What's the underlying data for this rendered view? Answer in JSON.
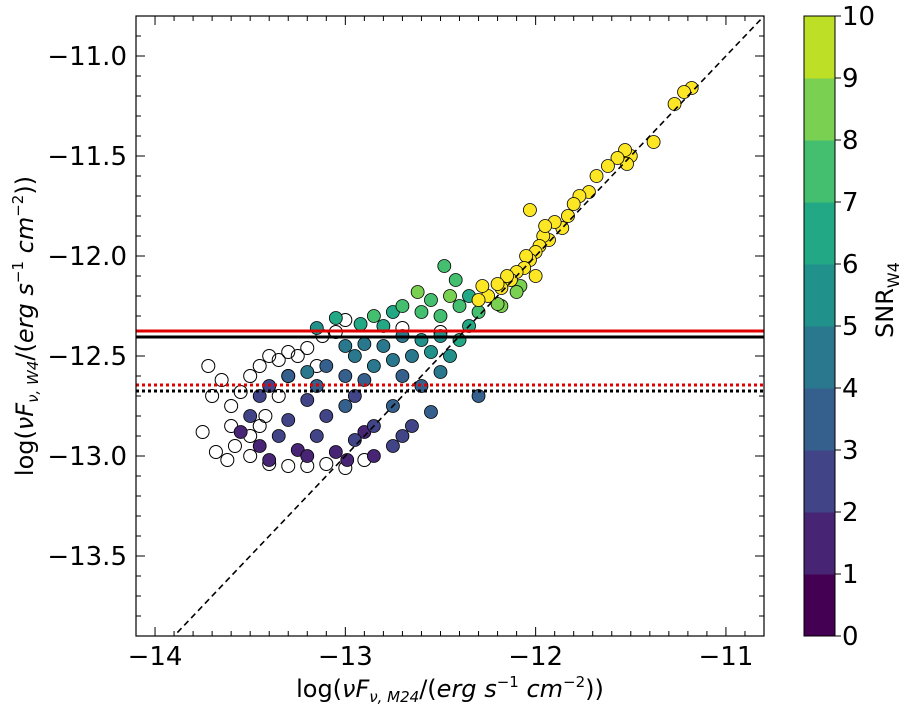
{
  "chart_data": {
    "type": "scatter",
    "xlabel": "log(νF_{ν,M24}/(erg s^{−1} cm^{−2}))",
    "ylabel": "log(νF_{ν,W4}/(erg s^{−1} cm^{−2}))",
    "xlabel_parts": {
      "pre": "log(",
      "nu": "ν",
      "F": "F",
      "sub": "ν, M24",
      "mid": "/(",
      "erg": "erg",
      "s": "s",
      "sexp": "−1",
      "cm": "cm",
      "cmexp": "−2",
      "post": "))"
    },
    "ylabel_parts": {
      "pre": "log(",
      "nu": "ν",
      "F": "F",
      "sub": "ν, W4",
      "mid": "/(",
      "erg": "erg",
      "s": "s",
      "sexp": "−1",
      "cm": "cm",
      "cmexp": "−2",
      "post": "))"
    },
    "xlim": [
      -14.1,
      -10.8
    ],
    "ylim": [
      -13.9,
      -10.8
    ],
    "xticks": [
      -14,
      -13,
      -12,
      -11
    ],
    "xtick_labels": [
      "−14",
      "−13",
      "−12",
      "−11"
    ],
    "yticks": [
      -13.5,
      -13.0,
      -12.5,
      -12.0,
      -11.5,
      -11.0
    ],
    "ytick_labels": [
      "−13.5",
      "−13.0",
      "−12.5",
      "−12.0",
      "−11.5",
      "−11.0"
    ],
    "reference_lines": [
      {
        "name": "one-to-one",
        "kind": "diagonal",
        "slope": 1,
        "intercept": 0,
        "color": "#000000",
        "style": "dashed"
      },
      {
        "name": "red-solid",
        "kind": "horizontal",
        "y": -12.375,
        "color": "#e00000",
        "style": "solid"
      },
      {
        "name": "black-solid",
        "kind": "horizontal",
        "y": -12.405,
        "color": "#000000",
        "style": "solid"
      },
      {
        "name": "red-dotted",
        "kind": "horizontal",
        "y": -12.645,
        "color": "#e00000",
        "style": "dotted"
      },
      {
        "name": "black-dotted",
        "kind": "horizontal",
        "y": -12.675,
        "color": "#000000",
        "style": "dotted"
      }
    ],
    "series": [
      {
        "name": "SNR_W4 colored",
        "marker": "filled circle",
        "points": [
          [
            -11.18,
            -11.16
          ],
          [
            -11.22,
            -11.18
          ],
          [
            -11.27,
            -11.24
          ],
          [
            -11.38,
            -11.43
          ],
          [
            -11.5,
            -11.5
          ],
          [
            -11.53,
            -11.47
          ],
          [
            -11.52,
            -11.54
          ],
          [
            -11.57,
            -11.51
          ],
          [
            -11.62,
            -11.55
          ],
          [
            -11.68,
            -11.6
          ],
          [
            -11.72,
            -11.68
          ],
          [
            -11.77,
            -11.7
          ],
          [
            -11.8,
            -11.74
          ],
          [
            -11.83,
            -11.8
          ],
          [
            -11.86,
            -11.86
          ],
          [
            -11.9,
            -11.83
          ],
          [
            -11.93,
            -11.92
          ],
          [
            -11.96,
            -11.9
          ],
          [
            -11.98,
            -11.95
          ],
          [
            -12.0,
            -11.98
          ],
          [
            -12.03,
            -12.02
          ],
          [
            -12.05,
            -12.0
          ],
          [
            -12.06,
            -12.06
          ],
          [
            -12.1,
            -12.08
          ],
          [
            -12.13,
            -12.12
          ],
          [
            -12.15,
            -12.1
          ],
          [
            -12.18,
            -12.16
          ],
          [
            -12.2,
            -12.14
          ],
          [
            -12.25,
            -12.2
          ],
          [
            -12.3,
            -12.22
          ],
          [
            -12.03,
            -11.77
          ],
          [
            -11.95,
            -11.85
          ],
          [
            -12.0,
            -12.1
          ],
          [
            -12.08,
            -12.15
          ],
          [
            -12.18,
            -12.25
          ],
          [
            -12.1,
            -12.18
          ],
          [
            -12.2,
            -12.24
          ],
          [
            -12.3,
            -12.28
          ],
          [
            -12.4,
            -12.25
          ],
          [
            -12.45,
            -12.2
          ],
          [
            -12.5,
            -12.3
          ],
          [
            -12.55,
            -12.22
          ],
          [
            -12.6,
            -12.28
          ],
          [
            -12.62,
            -12.18
          ],
          [
            -12.7,
            -12.25
          ],
          [
            -12.48,
            -12.05
          ],
          [
            -12.42,
            -12.12
          ],
          [
            -12.35,
            -12.2
          ],
          [
            -12.28,
            -12.15
          ],
          [
            -12.75,
            -12.28
          ],
          [
            -12.8,
            -12.35
          ],
          [
            -12.85,
            -12.3
          ],
          [
            -12.92,
            -12.34
          ],
          [
            -13.15,
            -12.36
          ],
          [
            -13.05,
            -12.31
          ],
          [
            -12.5,
            -12.4
          ],
          [
            -12.6,
            -12.42
          ],
          [
            -12.7,
            -12.4
          ],
          [
            -12.8,
            -12.45
          ],
          [
            -12.9,
            -12.44
          ],
          [
            -13.0,
            -12.45
          ],
          [
            -12.95,
            -12.5
          ],
          [
            -12.55,
            -12.48
          ],
          [
            -12.65,
            -12.5
          ],
          [
            -12.75,
            -12.52
          ],
          [
            -12.4,
            -12.42
          ],
          [
            -12.45,
            -12.5
          ],
          [
            -12.35,
            -12.35
          ],
          [
            -12.85,
            -12.55
          ],
          [
            -13.1,
            -12.55
          ],
          [
            -13.2,
            -12.58
          ],
          [
            -13.3,
            -12.6
          ],
          [
            -13.0,
            -12.6
          ],
          [
            -12.7,
            -12.6
          ],
          [
            -12.5,
            -12.58
          ],
          [
            -12.3,
            -12.7
          ],
          [
            -12.6,
            -12.65
          ],
          [
            -12.9,
            -12.62
          ],
          [
            -13.15,
            -12.65
          ],
          [
            -13.4,
            -12.65
          ],
          [
            -13.45,
            -12.7
          ],
          [
            -13.2,
            -12.72
          ],
          [
            -12.95,
            -12.7
          ],
          [
            -12.75,
            -12.75
          ],
          [
            -12.55,
            -12.78
          ],
          [
            -13.5,
            -12.8
          ],
          [
            -13.3,
            -12.82
          ],
          [
            -13.1,
            -12.8
          ],
          [
            -12.85,
            -12.85
          ],
          [
            -12.65,
            -12.85
          ],
          [
            -13.55,
            -12.88
          ],
          [
            -13.35,
            -12.9
          ],
          [
            -13.15,
            -12.9
          ],
          [
            -12.95,
            -12.92
          ],
          [
            -12.75,
            -12.95
          ],
          [
            -13.45,
            -12.95
          ],
          [
            -13.25,
            -12.97
          ],
          [
            -13.05,
            -12.98
          ],
          [
            -12.85,
            -13.0
          ],
          [
            -13.4,
            -13.02
          ],
          [
            -13.2,
            -13.0
          ],
          [
            -12.99,
            -13.02
          ],
          [
            -12.9,
            -12.88
          ],
          [
            -12.7,
            -12.9
          ],
          [
            -13.0,
            -12.75
          ]
        ],
        "snr": [
          9.5,
          9.5,
          9.5,
          9.5,
          9.5,
          9.5,
          9.5,
          9.5,
          9.5,
          9.5,
          9.5,
          9.5,
          9.5,
          9.5,
          9.5,
          9.5,
          9.5,
          9.5,
          9.5,
          9.5,
          9.5,
          9.5,
          9.5,
          9.5,
          9.5,
          9.5,
          9.5,
          9.5,
          9.5,
          9.5,
          9.5,
          9.5,
          9.5,
          8.5,
          8.5,
          8.5,
          8.5,
          7.5,
          7.5,
          8.5,
          7.5,
          7.5,
          7.5,
          8.5,
          7.5,
          7.5,
          7.5,
          6.5,
          9.5,
          6.5,
          6.5,
          7.5,
          6.5,
          5.5,
          6.5,
          5.5,
          5.5,
          4.5,
          4.5,
          4.5,
          4.5,
          4.5,
          5.5,
          4.5,
          4.5,
          6.5,
          5.5,
          6.5,
          4.5,
          3.5,
          4.5,
          3.5,
          3.5,
          3.5,
          4.5,
          3.5,
          3.5,
          3.5,
          3.5,
          2.5,
          2.5,
          2.5,
          2.5,
          3.5,
          3.5,
          2.5,
          2.5,
          2.5,
          2.5,
          2.5,
          1.5,
          2.5,
          2.5,
          2.5,
          2.5,
          1.5,
          1.5,
          1.5,
          1.5,
          1.5,
          1.5,
          1.5,
          1.5,
          2.5,
          3.5
        ]
      },
      {
        "name": "undetected / open",
        "marker": "open circle",
        "points": [
          [
            -13.75,
            -12.88
          ],
          [
            -13.7,
            -12.7
          ],
          [
            -13.72,
            -12.55
          ],
          [
            -13.65,
            -12.62
          ],
          [
            -13.6,
            -12.75
          ],
          [
            -13.55,
            -12.68
          ],
          [
            -13.58,
            -12.95
          ],
          [
            -13.5,
            -12.6
          ],
          [
            -13.45,
            -12.55
          ],
          [
            -13.4,
            -12.5
          ],
          [
            -13.35,
            -12.52
          ],
          [
            -13.3,
            -12.48
          ],
          [
            -13.25,
            -12.5
          ],
          [
            -13.2,
            -12.46
          ],
          [
            -13.68,
            -12.98
          ],
          [
            -13.62,
            -13.02
          ],
          [
            -13.5,
            -13.0
          ],
          [
            -13.4,
            -13.04
          ],
          [
            -13.3,
            -13.05
          ],
          [
            -13.2,
            -13.05
          ],
          [
            -13.1,
            -13.04
          ],
          [
            -13.0,
            -13.06
          ],
          [
            -12.9,
            -13.02
          ],
          [
            -13.6,
            -12.85
          ],
          [
            -13.5,
            -12.9
          ],
          [
            -13.42,
            -12.8
          ],
          [
            -13.35,
            -12.7
          ],
          [
            -13.12,
            -12.4
          ],
          [
            -13.05,
            -12.38
          ],
          [
            -13.3,
            -12.6
          ],
          [
            -13.0,
            -12.32
          ],
          [
            -12.5,
            -12.38
          ],
          [
            -12.7,
            -12.36
          ],
          [
            -13.15,
            -12.55
          ],
          [
            -13.45,
            -12.85
          ]
        ]
      }
    ],
    "colorbar": {
      "label": "SNR",
      "label_sub": "W4",
      "range": [
        0,
        10
      ],
      "ticks": [
        "0",
        "1",
        "2",
        "3",
        "4",
        "5",
        "6",
        "7",
        "8",
        "9",
        "10"
      ],
      "bands": [
        "#440154",
        "#482475",
        "#414487",
        "#355f8d",
        "#2a788e",
        "#21918c",
        "#22a884",
        "#44bf70",
        "#7ad151",
        "#bddf26"
      ]
    }
  }
}
